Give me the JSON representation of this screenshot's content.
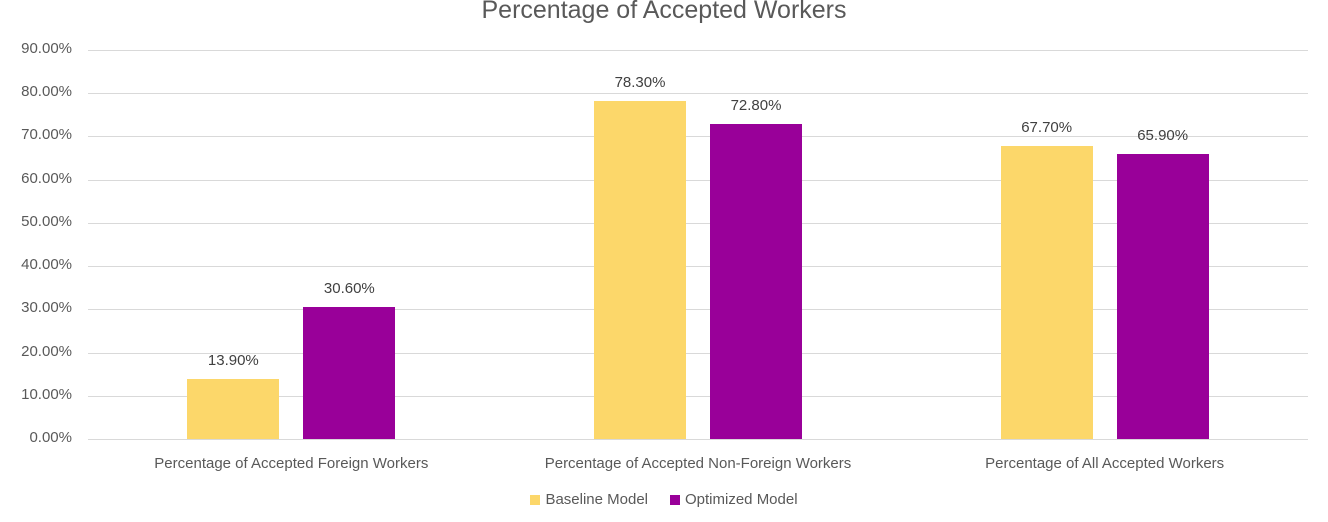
{
  "chart_data": {
    "type": "bar",
    "title": "Percentage of Accepted Workers",
    "xlabel": "",
    "ylabel": "",
    "ylim": [
      0,
      0.9
    ],
    "yticks": [
      "0.00%",
      "10.00%",
      "20.00%",
      "30.00%",
      "40.00%",
      "50.00%",
      "60.00%",
      "70.00%",
      "80.00%",
      "90.00%"
    ],
    "grid": true,
    "legend_position": "bottom",
    "categories": [
      "Percentage of Accepted Foreign Workers",
      "Percentage of Accepted Non-Foreign Workers",
      "Percentage of All Accepted Workers"
    ],
    "series": [
      {
        "name": "Baseline Model",
        "color": "#FCD76A",
        "values": [
          0.139,
          0.783,
          0.677
        ],
        "labels": [
          "13.90%",
          "78.30%",
          "67.70%"
        ]
      },
      {
        "name": "Optimized Model",
        "color": "#990099",
        "values": [
          0.306,
          0.728,
          0.659
        ],
        "labels": [
          "30.60%",
          "72.80%",
          "65.90%"
        ]
      }
    ]
  }
}
